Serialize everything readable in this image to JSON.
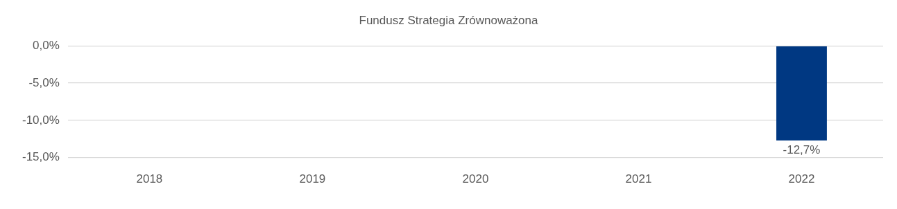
{
  "chart_data": {
    "type": "bar",
    "title": "Fundusz Strategia Zrównoważona",
    "categories": [
      "2018",
      "2019",
      "2020",
      "2021",
      "2022"
    ],
    "series": [
      {
        "color": "#003882",
        "values": [
          null,
          null,
          null,
          null,
          -12.7
        ],
        "value_labels": [
          null,
          null,
          null,
          null,
          "-12,7%"
        ]
      }
    ],
    "ylim": [
      -15,
      0
    ],
    "yticks": [
      {
        "value": 0,
        "label": "0,0%"
      },
      {
        "value": -5,
        "label": "-5,0%"
      },
      {
        "value": -10,
        "label": "-10,0%"
      },
      {
        "value": -15,
        "label": "-15,0%"
      }
    ],
    "grid": "y",
    "legend": false
  }
}
